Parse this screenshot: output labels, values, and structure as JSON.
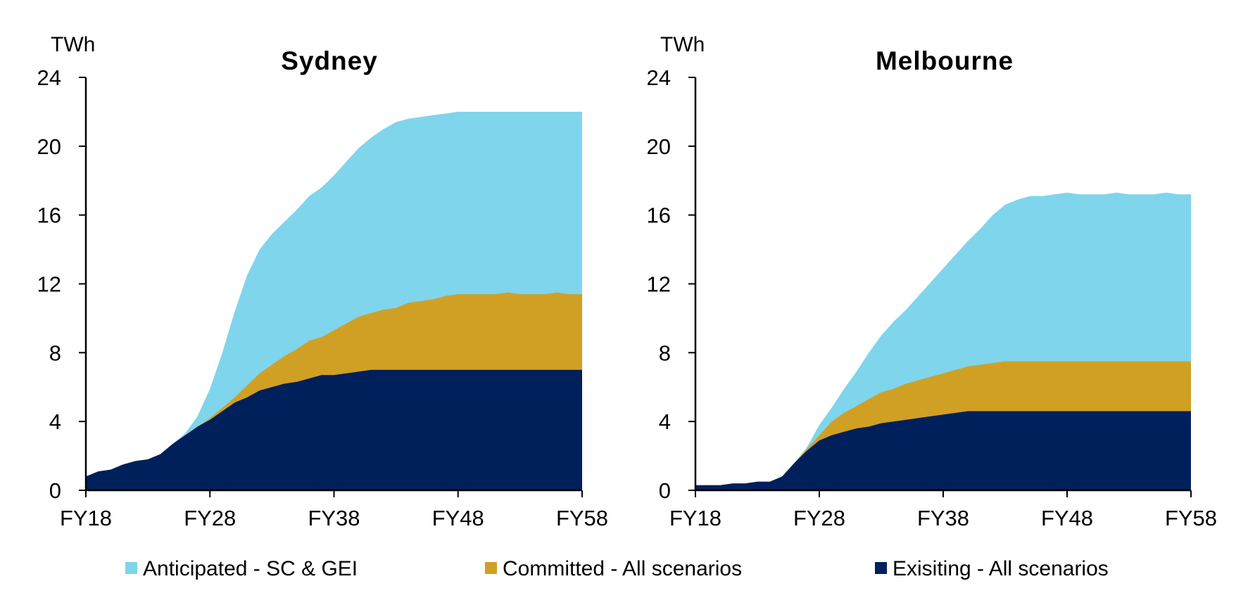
{
  "colors": {
    "anticipated": "#7fd5ec",
    "committed": "#d0a024",
    "existing": "#00205b",
    "axis": "#000000"
  },
  "legend": [
    {
      "key": "anticipated",
      "label": "Anticipated - SC & GEI"
    },
    {
      "key": "committed",
      "label": "Committed - All scenarios"
    },
    {
      "key": "existing",
      "label": "Exisiting - All scenarios"
    }
  ],
  "chart_data": [
    {
      "type": "area",
      "stacked": true,
      "title": "Sydney",
      "ylabel": "TWh",
      "ylim": [
        0,
        24
      ],
      "yticks": [
        0,
        4,
        8,
        12,
        16,
        20,
        24
      ],
      "xlim": [
        2018,
        2058
      ],
      "xticks": [
        {
          "value": 2018,
          "label": "FY18"
        },
        {
          "value": 2028,
          "label": "FY28"
        },
        {
          "value": 2038,
          "label": "FY38"
        },
        {
          "value": 2048,
          "label": "FY48"
        },
        {
          "value": 2058,
          "label": "FY58"
        }
      ],
      "x": [
        2018,
        2019,
        2020,
        2021,
        2022,
        2023,
        2024,
        2025,
        2026,
        2027,
        2028,
        2029,
        2030,
        2031,
        2032,
        2033,
        2034,
        2035,
        2036,
        2037,
        2038,
        2039,
        2040,
        2041,
        2042,
        2043,
        2044,
        2045,
        2046,
        2047,
        2048,
        2049,
        2050,
        2051,
        2052,
        2053,
        2054,
        2055,
        2056,
        2057,
        2058
      ],
      "series": [
        {
          "key": "existing",
          "name": "Exisiting - All scenarios",
          "totals": [
            0.8,
            1.1,
            1.2,
            1.5,
            1.7,
            1.8,
            2.1,
            2.7,
            3.2,
            3.7,
            4.1,
            4.6,
            5.1,
            5.4,
            5.8,
            6.0,
            6.2,
            6.3,
            6.5,
            6.7,
            6.7,
            6.8,
            6.9,
            7.0,
            7.0,
            7.0,
            7.0,
            7.0,
            7.0,
            7.0,
            7.0,
            7.0,
            7.0,
            7.0,
            7.0,
            7.0,
            7.0,
            7.0,
            7.0,
            7.0,
            7.0
          ]
        },
        {
          "key": "committed",
          "name": "Committed - All scenarios",
          "totals": [
            0.8,
            1.1,
            1.2,
            1.5,
            1.7,
            1.8,
            2.1,
            2.7,
            3.2,
            3.7,
            4.2,
            4.8,
            5.4,
            6.1,
            6.8,
            7.3,
            7.8,
            8.2,
            8.7,
            8.9,
            9.3,
            9.7,
            10.1,
            10.3,
            10.5,
            10.6,
            10.9,
            11.0,
            11.1,
            11.3,
            11.4,
            11.4,
            11.4,
            11.4,
            11.5,
            11.4,
            11.4,
            11.4,
            11.5,
            11.4,
            11.4
          ]
        },
        {
          "key": "anticipated",
          "name": "Anticipated - SC & GEI",
          "totals": [
            0.8,
            1.1,
            1.2,
            1.5,
            1.7,
            1.8,
            2.1,
            2.7,
            3.3,
            4.3,
            5.9,
            8.0,
            10.4,
            12.5,
            14.0,
            14.9,
            15.6,
            16.3,
            17.1,
            17.6,
            18.3,
            19.1,
            19.9,
            20.5,
            21.0,
            21.4,
            21.6,
            21.7,
            21.8,
            21.9,
            22.0,
            22.0,
            22.0,
            22.0,
            22.0,
            22.0,
            22.0,
            22.0,
            22.0,
            22.0,
            22.0
          ]
        }
      ]
    },
    {
      "type": "area",
      "stacked": true,
      "title": "Melbourne",
      "ylabel": "TWh",
      "ylim": [
        0,
        24
      ],
      "yticks": [
        0,
        4,
        8,
        12,
        16,
        20,
        24
      ],
      "xlim": [
        2018,
        2058
      ],
      "xticks": [
        {
          "value": 2018,
          "label": "FY18"
        },
        {
          "value": 2028,
          "label": "FY28"
        },
        {
          "value": 2038,
          "label": "FY38"
        },
        {
          "value": 2048,
          "label": "FY48"
        },
        {
          "value": 2058,
          "label": "FY58"
        }
      ],
      "x": [
        2018,
        2019,
        2020,
        2021,
        2022,
        2023,
        2024,
        2025,
        2026,
        2027,
        2028,
        2029,
        2030,
        2031,
        2032,
        2033,
        2034,
        2035,
        2036,
        2037,
        2038,
        2039,
        2040,
        2041,
        2042,
        2043,
        2044,
        2045,
        2046,
        2047,
        2048,
        2049,
        2050,
        2051,
        2052,
        2053,
        2054,
        2055,
        2056,
        2057,
        2058
      ],
      "series": [
        {
          "key": "existing",
          "name": "Exisiting - All scenarios",
          "totals": [
            0.3,
            0.3,
            0.3,
            0.4,
            0.4,
            0.5,
            0.5,
            0.8,
            1.6,
            2.3,
            2.9,
            3.2,
            3.4,
            3.6,
            3.7,
            3.9,
            4.0,
            4.1,
            4.2,
            4.3,
            4.4,
            4.5,
            4.6,
            4.6,
            4.6,
            4.6,
            4.6,
            4.6,
            4.6,
            4.6,
            4.6,
            4.6,
            4.6,
            4.6,
            4.6,
            4.6,
            4.6,
            4.6,
            4.6,
            4.6,
            4.6
          ]
        },
        {
          "key": "committed",
          "name": "Committed - All scenarios",
          "totals": [
            0.3,
            0.3,
            0.3,
            0.4,
            0.4,
            0.5,
            0.5,
            0.8,
            1.6,
            2.4,
            3.2,
            4.0,
            4.5,
            4.9,
            5.3,
            5.7,
            5.9,
            6.2,
            6.4,
            6.6,
            6.8,
            7.0,
            7.2,
            7.3,
            7.4,
            7.5,
            7.5,
            7.5,
            7.5,
            7.5,
            7.5,
            7.5,
            7.5,
            7.5,
            7.5,
            7.5,
            7.5,
            7.5,
            7.5,
            7.5,
            7.5
          ]
        },
        {
          "key": "anticipated",
          "name": "Anticipated - SC & GEI",
          "totals": [
            0.3,
            0.3,
            0.3,
            0.4,
            0.4,
            0.5,
            0.5,
            0.8,
            1.6,
            2.5,
            3.8,
            4.8,
            5.9,
            6.9,
            8.0,
            9.0,
            9.8,
            10.5,
            11.3,
            12.1,
            12.9,
            13.7,
            14.5,
            15.2,
            16.0,
            16.6,
            16.9,
            17.1,
            17.1,
            17.2,
            17.3,
            17.2,
            17.2,
            17.2,
            17.3,
            17.2,
            17.2,
            17.2,
            17.3,
            17.2,
            17.2
          ]
        }
      ]
    }
  ]
}
